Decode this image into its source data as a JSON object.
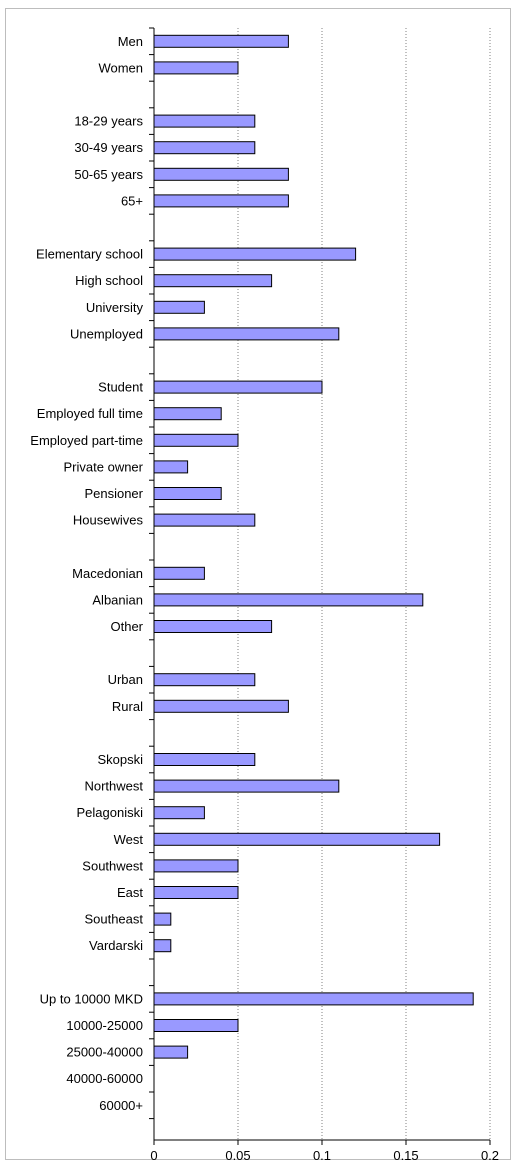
{
  "chart_data": {
    "type": "bar",
    "orientation": "horizontal",
    "title": "",
    "xlabel": "",
    "ylabel": "",
    "xlim": [
      0,
      0.2
    ],
    "x_ticks": [
      0,
      0.05,
      0.1,
      0.15,
      0.2
    ],
    "x_tick_labels": [
      "0",
      "0.05",
      "0.1",
      "0.15",
      "0.2"
    ],
    "grid": "vertical",
    "legend": "none",
    "bar_color": "#9999ff",
    "bar_edge_color": "#000000",
    "grid_color": "#808080",
    "categories": [
      "Men",
      "Women",
      "",
      "18-29 years",
      "30-49 years",
      "50-65 years",
      "65+",
      "",
      "Elementary school",
      "High school",
      "University",
      "Unemployed",
      "",
      "Student",
      "Employed full time",
      "Employed part-time",
      "Private owner",
      "Pensioner",
      "Housewives",
      "",
      "Macedonian",
      "Albanian",
      "Other",
      "",
      "Urban",
      "Rural",
      "",
      "Skopski",
      "Northwest",
      "Pelagoniski",
      "West",
      "Southwest",
      "East",
      "Southeast",
      "Vardarski",
      "",
      "Up to 10000 MKD",
      "10000-25000",
      "25000-40000",
      "40000-60000",
      "60000+"
    ],
    "values": [
      0.08,
      0.05,
      null,
      0.06,
      0.06,
      0.08,
      0.08,
      null,
      0.12,
      0.07,
      0.03,
      0.11,
      null,
      0.1,
      0.04,
      0.05,
      0.02,
      0.04,
      0.06,
      null,
      0.03,
      0.16,
      0.07,
      null,
      0.06,
      0.08,
      null,
      0.06,
      0.11,
      0.03,
      0.17,
      0.05,
      0.05,
      0.01,
      0.01,
      null,
      0.19,
      0.05,
      0.02,
      0,
      0
    ]
  }
}
